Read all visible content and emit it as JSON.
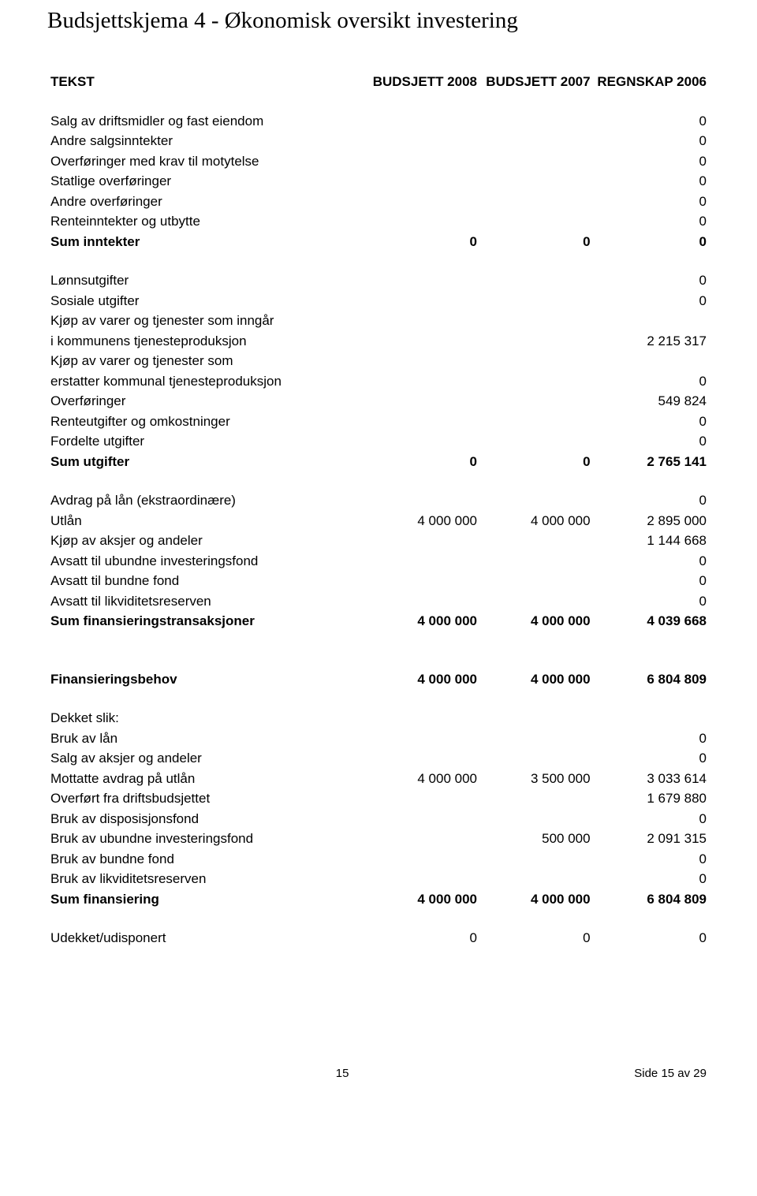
{
  "title": "Budsjettskjema 4 - Økonomisk oversikt investering",
  "columns": {
    "label": "TEKST",
    "c1": "BUDSJETT 2008",
    "c2": "BUDSJETT 2007",
    "c3": "REGNSKAP 2006"
  },
  "rows": [
    {
      "type": "header"
    },
    {
      "type": "spacer"
    },
    {
      "label": "Salg av driftsmidler og fast eiendom",
      "c3": "0"
    },
    {
      "label": "Andre salgsinntekter",
      "c3": "0"
    },
    {
      "label": "Overføringer med krav til motytelse",
      "c3": "0"
    },
    {
      "label": "Statlige overføringer",
      "c3": "0"
    },
    {
      "label": "Andre overføringer",
      "c3": "0"
    },
    {
      "label": "Renteinntekter og utbytte",
      "c3": "0"
    },
    {
      "label": "Sum inntekter",
      "c1": "0",
      "c2": "0",
      "c3": "0",
      "bold": true
    },
    {
      "type": "spacer"
    },
    {
      "label": "Lønnsutgifter",
      "c3": "0"
    },
    {
      "label": "Sosiale utgifter",
      "c3": "0"
    },
    {
      "label": "Kjøp av varer og tjenester som inngår"
    },
    {
      "label": "i kommunens tjenesteproduksjon",
      "c3": "2 215 317"
    },
    {
      "label": "Kjøp av varer og tjenester som"
    },
    {
      "label": "erstatter kommunal tjenesteproduksjon",
      "c3": "0"
    },
    {
      "label": "Overføringer",
      "c3": "549 824"
    },
    {
      "label": "Renteutgifter og omkostninger",
      "c3": "0"
    },
    {
      "label": "Fordelte utgifter",
      "c3": "0"
    },
    {
      "label": "Sum utgifter",
      "c1": "0",
      "c2": "0",
      "c3": "2 765 141",
      "bold": true
    },
    {
      "type": "spacer"
    },
    {
      "label": "Avdrag på lån (ekstraordinære)",
      "c3": "0"
    },
    {
      "label": "Utlån",
      "c1": "4 000 000",
      "c2": "4 000 000",
      "c3": "2 895 000"
    },
    {
      "label": "Kjøp av aksjer og andeler",
      "c3": "1 144 668"
    },
    {
      "label": "Avsatt til ubundne investeringsfond",
      "c3": "0"
    },
    {
      "label": "Avsatt til bundne fond",
      "c3": "0"
    },
    {
      "label": "Avsatt til likviditetsreserven",
      "c3": "0"
    },
    {
      "label": "Sum finansieringstransaksjoner",
      "c1": "4 000 000",
      "c2": "4 000 000",
      "c3": "4 039 668",
      "bold": true
    },
    {
      "type": "spacer-lg"
    },
    {
      "label": "Finansieringsbehov",
      "c1": "4 000 000",
      "c2": "4 000 000",
      "c3": "6 804 809",
      "bold": true
    },
    {
      "type": "spacer"
    },
    {
      "label": "Dekket slik:"
    },
    {
      "label": "Bruk av lån",
      "c3": "0"
    },
    {
      "label": "Salg av aksjer og andeler",
      "c3": "0"
    },
    {
      "label": "Mottatte avdrag på utlån",
      "c1": "4 000 000",
      "c2": "3 500 000",
      "c3": "3 033 614"
    },
    {
      "label": "Overført fra driftsbudsjettet",
      "c3": "1 679 880"
    },
    {
      "label": "Bruk av disposisjonsfond",
      "c3": "0"
    },
    {
      "label": "Bruk av ubundne investeringsfond",
      "c2": "500 000",
      "c3": "2 091 315"
    },
    {
      "label": "Bruk av bundne fond",
      "c3": "0"
    },
    {
      "label": "Bruk av likviditetsreserven",
      "c3": "0"
    },
    {
      "label": "Sum finansiering",
      "c1": "4 000 000",
      "c2": "4 000 000",
      "c3": "6 804 809",
      "bold": true
    },
    {
      "type": "spacer"
    },
    {
      "label": "Udekket/udisponert",
      "c1": "0",
      "c2": "0",
      "c3": "0"
    }
  ],
  "footer": {
    "pagenum": "15",
    "side": "Side 15 av 29"
  }
}
